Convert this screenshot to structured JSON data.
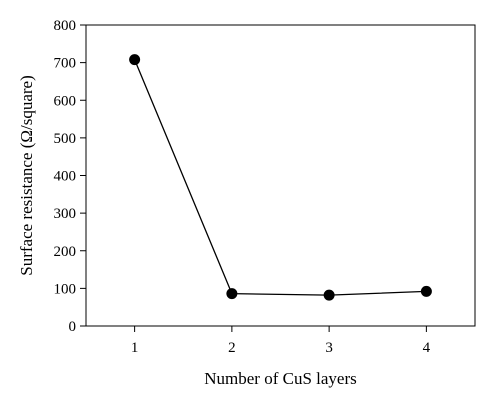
{
  "chart_data": {
    "type": "line",
    "title": "",
    "xlabel": "Number of CuS layers",
    "ylabel": "Surface resistance (Ω/square)",
    "x": [
      1,
      2,
      3,
      4
    ],
    "xticks": [
      "1",
      "2",
      "3",
      "4"
    ],
    "xlim": [
      0.5,
      4.5
    ],
    "ylim": [
      0,
      800
    ],
    "yticks": [
      0,
      100,
      200,
      300,
      400,
      500,
      600,
      700,
      800
    ],
    "series": [
      {
        "values": [
          708,
          86,
          82,
          92
        ],
        "color": "#000000",
        "marker": "circle"
      }
    ],
    "grid": false,
    "legend": "none"
  }
}
